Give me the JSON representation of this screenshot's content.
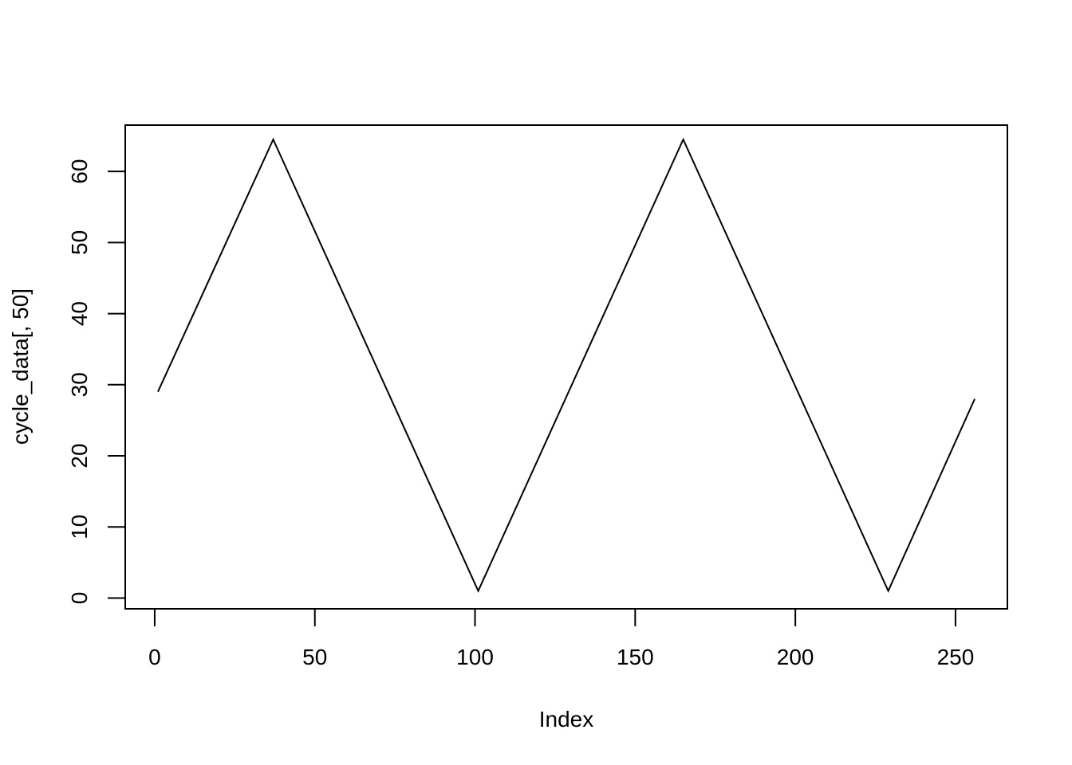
{
  "chart_data": {
    "type": "line",
    "title": "",
    "xlabel": "Index",
    "ylabel": "cycle_data[, 50]",
    "xlim": [
      -9.2,
      266.2
    ],
    "ylim": [
      -1.52,
      66.52
    ],
    "x_ticks": [
      0,
      50,
      100,
      150,
      200,
      250
    ],
    "y_ticks": [
      0,
      10,
      20,
      30,
      40,
      50,
      60
    ],
    "grid": false,
    "series": [
      {
        "color": "#000000",
        "x": [
          1,
          37,
          101,
          165,
          229,
          256
        ],
        "y": [
          29,
          64.5,
          1,
          64.5,
          1,
          28
        ]
      }
    ]
  }
}
